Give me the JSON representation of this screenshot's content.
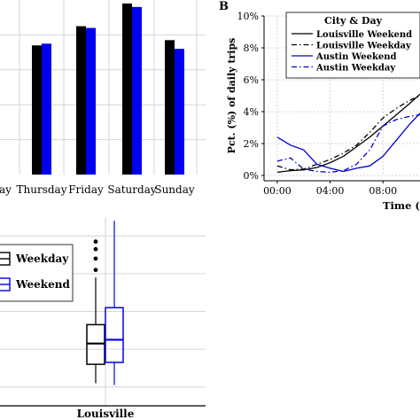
{
  "chart_data": [
    {
      "type": "bar",
      "categories": [
        "Thursday",
        "Friday",
        "Saturday",
        "Sunday"
      ],
      "partial_left_label": "ay",
      "series": [
        {
          "color": "#000000",
          "values": [
            0.74,
            0.85,
            0.98,
            0.77
          ]
        },
        {
          "color": "#0000ee",
          "values": [
            0.75,
            0.84,
            0.96,
            0.72
          ]
        }
      ],
      "ylim": [
        0,
        1.0
      ],
      "grid": true
    },
    {
      "type": "line",
      "panel_label": "B",
      "legend": {
        "title": "City & Day",
        "placement": "top-right",
        "entries": [
          {
            "label": "Louisville Weekend",
            "color": "#000000",
            "dash": "solid"
          },
          {
            "label": "Louisville Weekday",
            "color": "#000000",
            "dash": "dashdot"
          },
          {
            "label": "Austin Weekend",
            "color": "#0000cc",
            "dash": "solid"
          },
          {
            "label": "Austin Weekday",
            "color": "#0000cc",
            "dash": "dashdot"
          }
        ]
      },
      "ylabel": "Pct. (%) of daily trips",
      "xlabel": "Time (s",
      "xticks": [
        "00:00",
        "04:00",
        "08:00"
      ],
      "yticks": [
        "0%",
        "2%",
        "4%",
        "6%",
        "8%",
        "10%"
      ],
      "ylim": [
        0,
        10
      ],
      "xlim": [
        -1,
        10.8
      ],
      "series": [
        {
          "name": "Louisville Weekend",
          "x": [
            0,
            1,
            2,
            3,
            4,
            5,
            6,
            7,
            8,
            9,
            10,
            10.8
          ],
          "y": [
            0.2,
            0.3,
            0.35,
            0.5,
            0.8,
            1.2,
            1.8,
            2.4,
            3.1,
            3.8,
            4.5,
            5.1
          ]
        },
        {
          "name": "Louisville Weekday",
          "x": [
            0,
            1,
            2,
            3,
            4,
            5,
            6,
            7,
            8,
            9,
            10,
            10.8
          ],
          "y": [
            0.6,
            0.35,
            0.4,
            0.7,
            1.0,
            1.4,
            1.9,
            2.7,
            3.6,
            4.2,
            4.7,
            5.0
          ]
        },
        {
          "name": "Austin Weekend",
          "x": [
            0,
            1,
            2,
            3,
            4,
            5,
            6,
            7,
            8,
            9,
            10,
            10.8
          ],
          "y": [
            2.4,
            1.9,
            1.6,
            0.7,
            0.45,
            0.25,
            0.45,
            0.6,
            1.2,
            2.2,
            3.2,
            3.9
          ]
        },
        {
          "name": "Austin Weekday",
          "x": [
            0,
            1,
            2,
            3,
            4,
            5,
            6,
            7,
            8,
            9,
            10,
            10.8
          ],
          "y": [
            0.9,
            1.1,
            0.4,
            0.25,
            0.2,
            0.3,
            0.7,
            1.6,
            3.1,
            3.5,
            3.7,
            3.8
          ]
        }
      ]
    },
    {
      "type": "box",
      "legend": {
        "entries": [
          {
            "label": "Weekday",
            "color": "#000000"
          },
          {
            "label": "Weekend",
            "color": "#0000ee"
          }
        ]
      },
      "categories": [
        "Louisville"
      ],
      "ylim": [
        0,
        1
      ],
      "series": [
        {
          "name": "Weekday",
          "whisker_low": 0.12,
          "q1": 0.22,
          "median": 0.33,
          "q3": 0.43,
          "whisker_high": 0.68,
          "outliers": [
            0.72,
            0.78,
            0.83,
            0.87
          ]
        },
        {
          "name": "Weekend",
          "whisker_low": 0.11,
          "q1": 0.23,
          "median": 0.35,
          "q3": 0.52,
          "whisker_high": 0.98,
          "outliers": []
        }
      ]
    }
  ]
}
